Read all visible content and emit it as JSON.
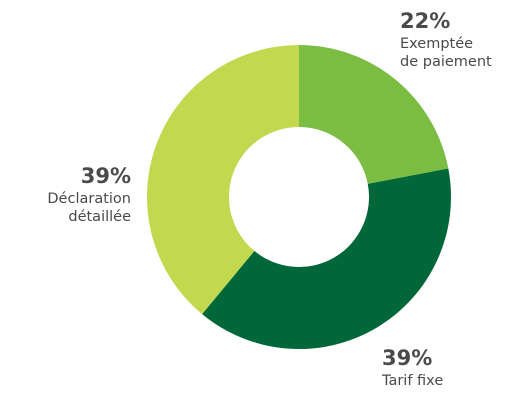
{
  "chart_data": {
    "type": "pie",
    "variant": "donut",
    "title": "",
    "categories": [
      "Exemptée de paiement",
      "Tarif fixe",
      "Déclaration détaillée"
    ],
    "values": [
      22,
      39,
      39
    ],
    "value_labels": [
      "22%",
      "39%",
      "39%"
    ],
    "slices": [
      {
        "value": 22,
        "value_label": "22%",
        "label_lines": [
          "Exemptée",
          "de paiement"
        ],
        "color": "#7bbd42"
      },
      {
        "value": 39,
        "value_label": "39%",
        "label_lines": [
          "Tarif fixe"
        ],
        "color": "#006838"
      },
      {
        "value": 39,
        "value_label": "39%",
        "label_lines": [
          "Déclaration",
          "détaillée"
        ],
        "color": "#c1d84f"
      }
    ],
    "start_angle_deg": 0,
    "direction": "clockwise",
    "legend": "none"
  }
}
